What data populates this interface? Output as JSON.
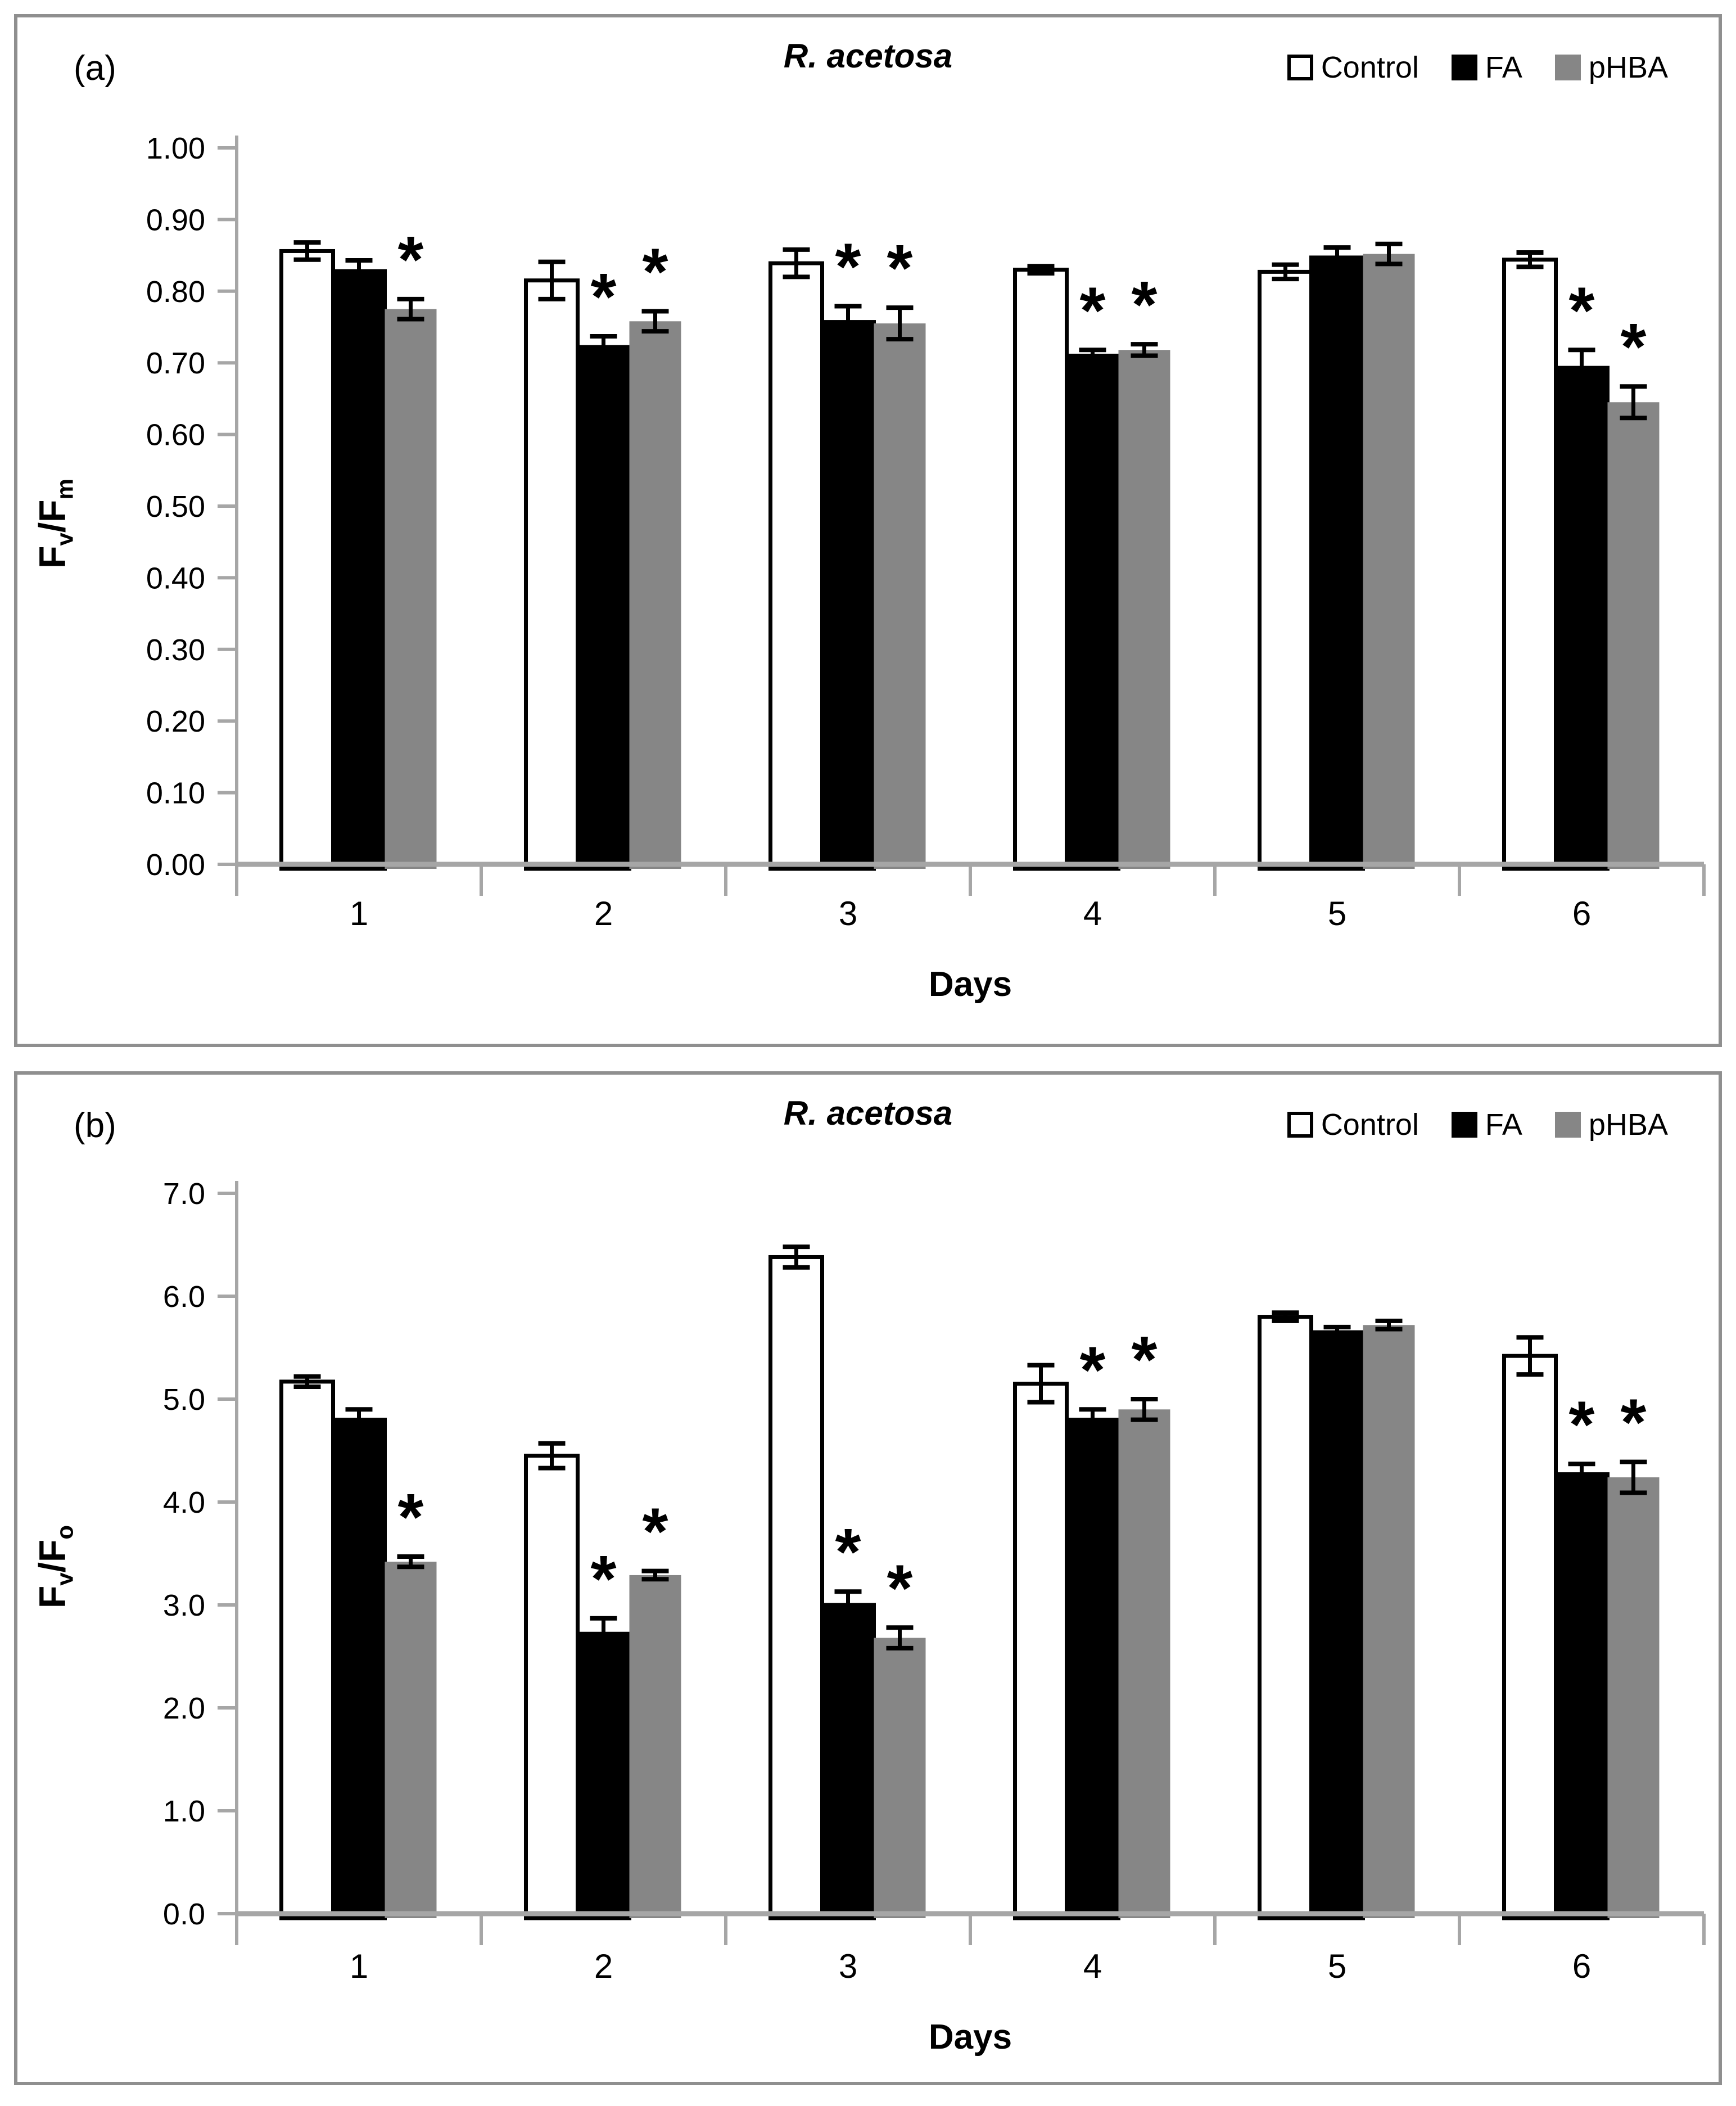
{
  "figure": {
    "panels": [
      {
        "panel_label": "(a)",
        "title": "R. acetosa",
        "xlabel": "Days",
        "ylabel": {
          "base1": "F",
          "sub1": "v",
          "base2": "/F",
          "sub2": "m"
        },
        "legend": [
          {
            "label": "Control"
          },
          {
            "label": "FA"
          },
          {
            "label": "pHBA"
          }
        ]
      },
      {
        "panel_label": "(b)",
        "title": "R. acetosa",
        "xlabel": "Days",
        "ylabel": {
          "base1": "F",
          "sub1": "v",
          "base2": "/F",
          "sub2": "o"
        },
        "legend": [
          {
            "label": "Control"
          },
          {
            "label": "FA"
          },
          {
            "label": "pHBA"
          }
        ]
      }
    ],
    "colors": {
      "control_fill": "#ffffff",
      "fa_fill": "#000000",
      "phba_fill": "#868686",
      "bar_stroke": "#000000",
      "axis": "#a6a6a6",
      "significance_marker": "#000000"
    }
  },
  "chart_data": [
    {
      "type": "bar",
      "panel": "a",
      "title": "R. acetosa",
      "xlabel": "Days",
      "ylabel": "Fv/Fm",
      "categories": [
        "1",
        "2",
        "3",
        "4",
        "5",
        "6"
      ],
      "ylim": [
        0.0,
        1.0
      ],
      "ytick_step": 0.1,
      "ytick_decimals": 2,
      "ytick_labels": [
        "0.00",
        "0.10",
        "0.20",
        "0.30",
        "0.40",
        "0.50",
        "0.60",
        "0.70",
        "0.80",
        "0.90",
        "1.00"
      ],
      "grid": false,
      "legend_position": "top-right",
      "error_bars": true,
      "significance_symbol": "*",
      "series": [
        {
          "name": "Control",
          "fill": "#ffffff",
          "stroke": "#000000",
          "values": [
            0.856,
            0.815,
            0.839,
            0.83,
            0.827,
            0.844
          ],
          "errors": [
            0.012,
            0.026,
            0.019,
            0.005,
            0.01,
            0.01
          ],
          "significant": [
            false,
            false,
            false,
            false,
            false,
            false
          ]
        },
        {
          "name": "FA",
          "fill": "#000000",
          "stroke": "#000000",
          "values": [
            0.828,
            0.722,
            0.757,
            0.71,
            0.847,
            0.693
          ],
          "errors": [
            0.015,
            0.015,
            0.022,
            0.008,
            0.014,
            0.025
          ],
          "significant": [
            false,
            true,
            true,
            true,
            false,
            true
          ]
        },
        {
          "name": "pHBA",
          "fill": "#868686",
          "stroke": null,
          "values": [
            0.775,
            0.758,
            0.755,
            0.718,
            0.852,
            0.645
          ],
          "errors": [
            0.014,
            0.014,
            0.022,
            0.008,
            0.014,
            0.022
          ],
          "significant": [
            true,
            true,
            true,
            true,
            false,
            true
          ]
        }
      ]
    },
    {
      "type": "bar",
      "panel": "b",
      "title": "R. acetosa",
      "xlabel": "Days",
      "ylabel": "Fv/Fo",
      "categories": [
        "1",
        "2",
        "3",
        "4",
        "5",
        "6"
      ],
      "ylim": [
        0.0,
        7.0
      ],
      "ytick_step": 1.0,
      "ytick_decimals": 1,
      "ytick_labels": [
        "0.0",
        "1.0",
        "2.0",
        "3.0",
        "4.0",
        "5.0",
        "6.0",
        "7.0"
      ],
      "grid": false,
      "legend_position": "top-right",
      "error_bars": true,
      "significance_symbol": "*",
      "series": [
        {
          "name": "Control",
          "fill": "#ffffff",
          "stroke": "#000000",
          "values": [
            5.17,
            4.45,
            6.38,
            5.15,
            5.8,
            5.42
          ],
          "errors": [
            0.05,
            0.12,
            0.1,
            0.18,
            0.04,
            0.18
          ],
          "significant": [
            false,
            false,
            false,
            false,
            false,
            false
          ]
        },
        {
          "name": "FA",
          "fill": "#000000",
          "stroke": "#000000",
          "values": [
            4.8,
            2.72,
            3.0,
            4.8,
            5.65,
            4.27
          ],
          "errors": [
            0.1,
            0.15,
            0.13,
            0.1,
            0.05,
            0.1
          ],
          "significant": [
            false,
            true,
            true,
            true,
            false,
            true
          ]
        },
        {
          "name": "pHBA",
          "fill": "#868686",
          "stroke": null,
          "values": [
            3.42,
            3.29,
            2.68,
            4.9,
            5.72,
            4.24
          ],
          "errors": [
            0.05,
            0.04,
            0.1,
            0.1,
            0.04,
            0.15
          ],
          "significant": [
            true,
            true,
            true,
            true,
            false,
            true
          ]
        }
      ]
    }
  ]
}
